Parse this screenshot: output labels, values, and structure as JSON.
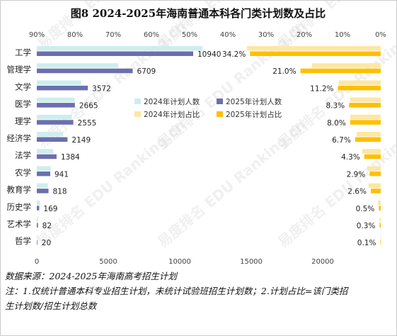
{
  "chart_data": {
    "type": "bar",
    "title": "图8 2024-2025年海南普通本科各门类计划数及占比",
    "categories": [
      "工学",
      "管理学",
      "文学",
      "医学",
      "理学",
      "经济学",
      "法学",
      "农学",
      "教育学",
      "历史学",
      "艺术学",
      "哲学"
    ],
    "left_panel": {
      "orientation": "horizontal",
      "x_axis_ticks": [
        "0",
        "5000",
        "10000",
        "15000",
        "20000"
      ],
      "xlim": [
        0,
        20000
      ],
      "series": [
        {
          "name": "2024年计划人数",
          "color": "#cdeeee",
          "values": [
            11600,
            5700,
            3100,
            2650,
            2450,
            1830,
            1150,
            980,
            780,
            220,
            90,
            25
          ]
        },
        {
          "name": "2025年计划人数",
          "color": "#6b6fad",
          "values": [
            10940,
            6709,
            3572,
            2665,
            2555,
            2149,
            1384,
            941,
            818,
            169,
            82,
            20
          ]
        }
      ],
      "data_labels": [
        "10940",
        "6709",
        "3572",
        "2665",
        "2555",
        "2149",
        "1384",
        "941",
        "818",
        "169",
        "82",
        "20"
      ]
    },
    "right_panel": {
      "orientation": "horizontal-reversed",
      "x_axis_ticks": [
        "90%",
        "80%",
        "70%",
        "60%",
        "50%",
        "40%",
        "30%",
        "20%",
        "10%",
        "0%"
      ],
      "xlim": [
        0,
        90
      ],
      "series": [
        {
          "name": "2024年计划占比",
          "color": "#fde7a4",
          "values": [
            35.0,
            18.0,
            11.0,
            8.0,
            8.0,
            6.3,
            4.8,
            3.5,
            3.2,
            0.8,
            0.3,
            0.1
          ]
        },
        {
          "name": "2025年计划占比",
          "color": "#ffbf00",
          "values": [
            34.2,
            21.0,
            11.2,
            8.3,
            8.0,
            6.7,
            4.3,
            2.9,
            2.6,
            0.5,
            0.3,
            0.1
          ]
        }
      ],
      "data_labels": [
        "34.2%",
        "21.0%",
        "11.2%",
        "8.3%",
        "8.0%",
        "6.7%",
        "4.3%",
        "2.9%",
        "2.6%",
        "0.5%",
        "0.3%",
        "0.1%"
      ]
    },
    "legend_placement": "center-right",
    "grid": false
  },
  "watermark": "易度排名 EDU Ranking.cn",
  "notes": {
    "source": "数据来源：2024-2025年海南高考招生计划",
    "note_line1": "注：1.仅统计普通本科专业招生计划，未统计试验班招生计划数；2.计划占比=该门类招",
    "note_line2": "生计划数/招生计划总数"
  }
}
